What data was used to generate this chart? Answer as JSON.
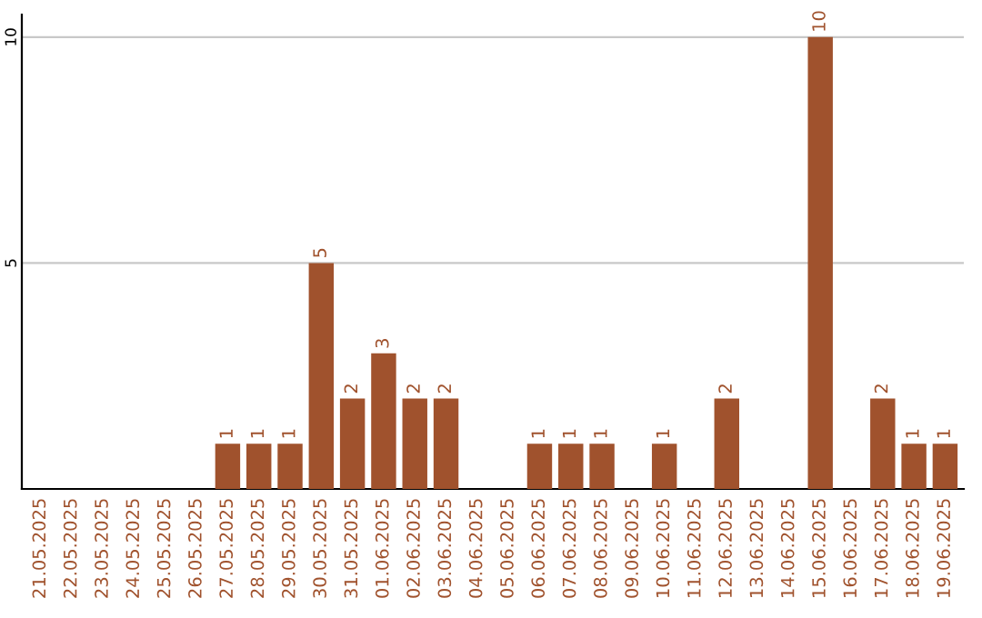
{
  "chart_data": {
    "type": "bar",
    "categories": [
      "21.05.2025",
      "22.05.2025",
      "23.05.2025",
      "24.05.2025",
      "25.05.2025",
      "26.05.2025",
      "27.05.2025",
      "28.05.2025",
      "29.05.2025",
      "30.05.2025",
      "31.05.2025",
      "01.06.2025",
      "02.06.2025",
      "03.06.2025",
      "04.06.2025",
      "05.06.2025",
      "06.06.2025",
      "07.06.2025",
      "08.06.2025",
      "09.06.2025",
      "10.06.2025",
      "11.06.2025",
      "12.06.2025",
      "13.06.2025",
      "14.06.2025",
      "15.06.2025",
      "16.06.2025",
      "17.06.2025",
      "18.06.2025",
      "19.06.2025"
    ],
    "values": [
      0,
      0,
      0,
      0,
      0,
      0,
      1,
      1,
      1,
      5,
      2,
      3,
      2,
      2,
      0,
      0,
      1,
      1,
      1,
      0,
      1,
      0,
      2,
      0,
      0,
      10,
      0,
      2,
      1,
      1
    ],
    "value_labels": [
      null,
      null,
      null,
      null,
      null,
      null,
      "1",
      "1",
      "1",
      "5",
      "2",
      "3",
      "2",
      "2",
      null,
      null,
      "1",
      "1",
      "1",
      null,
      "1",
      null,
      "2",
      null,
      null,
      "10",
      null,
      "2",
      "1",
      "1"
    ],
    "color": "#a0522d",
    "ylim": [
      0,
      10.5
    ],
    "yticks": [
      5,
      10
    ],
    "grid": "y",
    "legend": false
  }
}
